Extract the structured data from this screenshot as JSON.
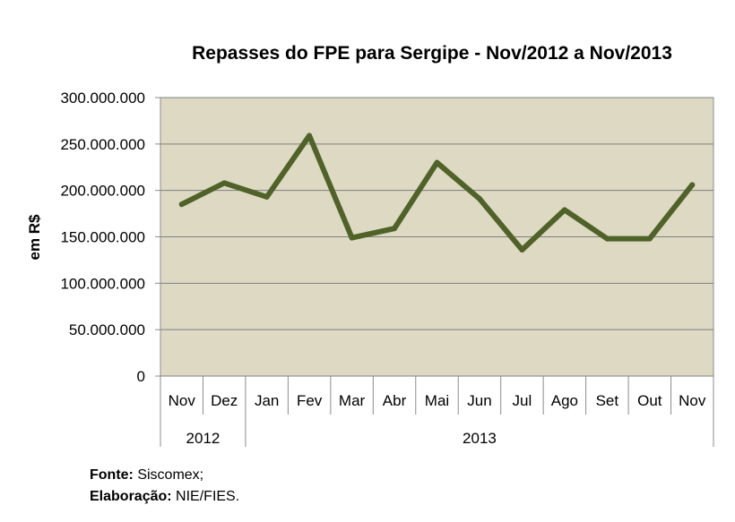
{
  "chart_data": {
    "type": "line",
    "title": "Repasses do FPE para Sergipe - Nov/2012 a Nov/2013",
    "ylabel": "em R$",
    "xlabel": "",
    "ylim": [
      0,
      300000000
    ],
    "yticks": [
      "0",
      "50.000.000",
      "100.000.000",
      "150.000.000",
      "200.000.000",
      "250.000.000",
      "300.000.000"
    ],
    "categories": [
      "Nov",
      "Dez",
      "Jan",
      "Fev",
      "Mar",
      "Abr",
      "Mai",
      "Jun",
      "Jul",
      "Ago",
      "Set",
      "Out",
      "Nov"
    ],
    "year_groups": [
      {
        "label": "2012",
        "count": 2
      },
      {
        "label": "2013",
        "count": 11
      }
    ],
    "series": [
      {
        "values": [
          185000000,
          208000000,
          193000000,
          259000000,
          149000000,
          159000000,
          230000000,
          191000000,
          136000000,
          179000000,
          148000000,
          148000000,
          206000000
        ]
      }
    ],
    "colors": {
      "line": "#4f6228",
      "plot_bg": "#ddd9c3",
      "grid": "#7f7f7f"
    },
    "grid": true,
    "legend": "none"
  },
  "footer": {
    "source_label": "Fonte:",
    "source_value": "Siscomex;",
    "author_label": "Elaboração:",
    "author_value": "NIE/FIES."
  }
}
